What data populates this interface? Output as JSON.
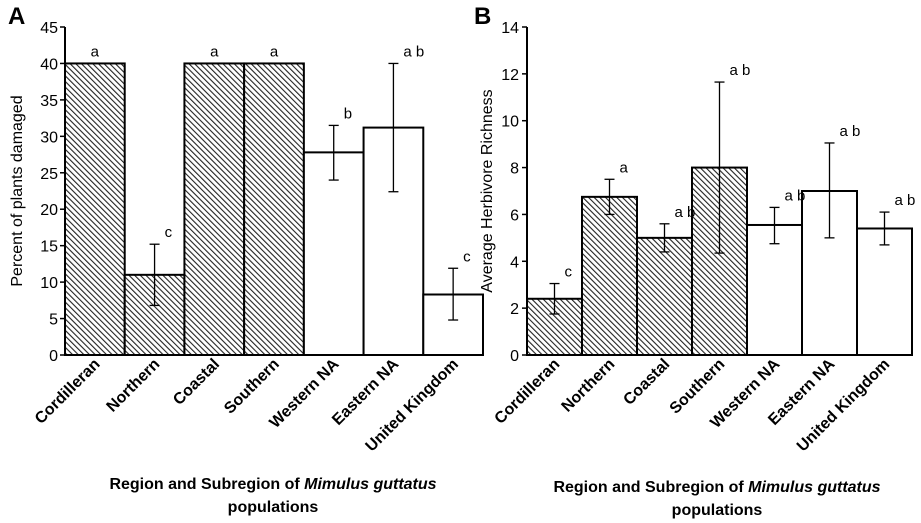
{
  "chart_data": [
    {
      "type": "bar",
      "panel_label": "A",
      "categories": [
        "Cordilleran",
        "Northern",
        "Coastal",
        "Southern",
        "Western NA",
        "Eastern NA",
        "United Kingdom"
      ],
      "values": [
        40,
        11,
        40,
        40,
        27.8,
        31.2,
        8.3
      ],
      "error_low": [
        null,
        6.8,
        null,
        null,
        24.0,
        22.4,
        4.8
      ],
      "error_high": [
        null,
        15.2,
        null,
        null,
        31.5,
        40.0,
        11.9
      ],
      "significance": [
        "a",
        "c",
        "a",
        "a",
        "b",
        "a b",
        "c"
      ],
      "fill": [
        "hatched",
        "hatched",
        "hatched",
        "hatched",
        "white",
        "white",
        "white"
      ],
      "ylabel": "Percent of plants damaged",
      "xlabel": "",
      "ylim": [
        0,
        45
      ],
      "yticks": [
        0,
        5,
        10,
        15,
        20,
        25,
        30,
        35,
        40,
        45
      ]
    },
    {
      "type": "bar",
      "panel_label": "B",
      "categories": [
        "Cordilleran",
        "Northern",
        "Coastal",
        "Southern",
        "Western NA",
        "Eastern NA",
        "United Kingdom"
      ],
      "values": [
        2.4,
        6.75,
        5.0,
        8.0,
        5.55,
        7.0,
        5.4
      ],
      "error_low": [
        1.75,
        6.0,
        4.4,
        4.35,
        4.75,
        5.0,
        4.7
      ],
      "error_high": [
        3.05,
        7.5,
        5.6,
        11.65,
        6.3,
        9.05,
        6.1
      ],
      "significance": [
        "c",
        "a",
        "a b",
        "a b",
        "a b",
        "a b",
        "a b"
      ],
      "fill": [
        "hatched",
        "hatched",
        "hatched",
        "hatched",
        "white",
        "white",
        "white"
      ],
      "ylabel": "Average Herbivore Richness",
      "xlabel": "",
      "ylim": [
        0,
        14
      ],
      "yticks": [
        0,
        2,
        4,
        6,
        8,
        10,
        12,
        14
      ]
    }
  ],
  "captions": {
    "left": {
      "prefix": "Region and Subregion of ",
      "italic": "Mimulus guttatus",
      "line2": "populations"
    },
    "right": {
      "prefix": "Region and Subregion of ",
      "italic": "Mimulus guttatus",
      "line2": "populations"
    }
  }
}
